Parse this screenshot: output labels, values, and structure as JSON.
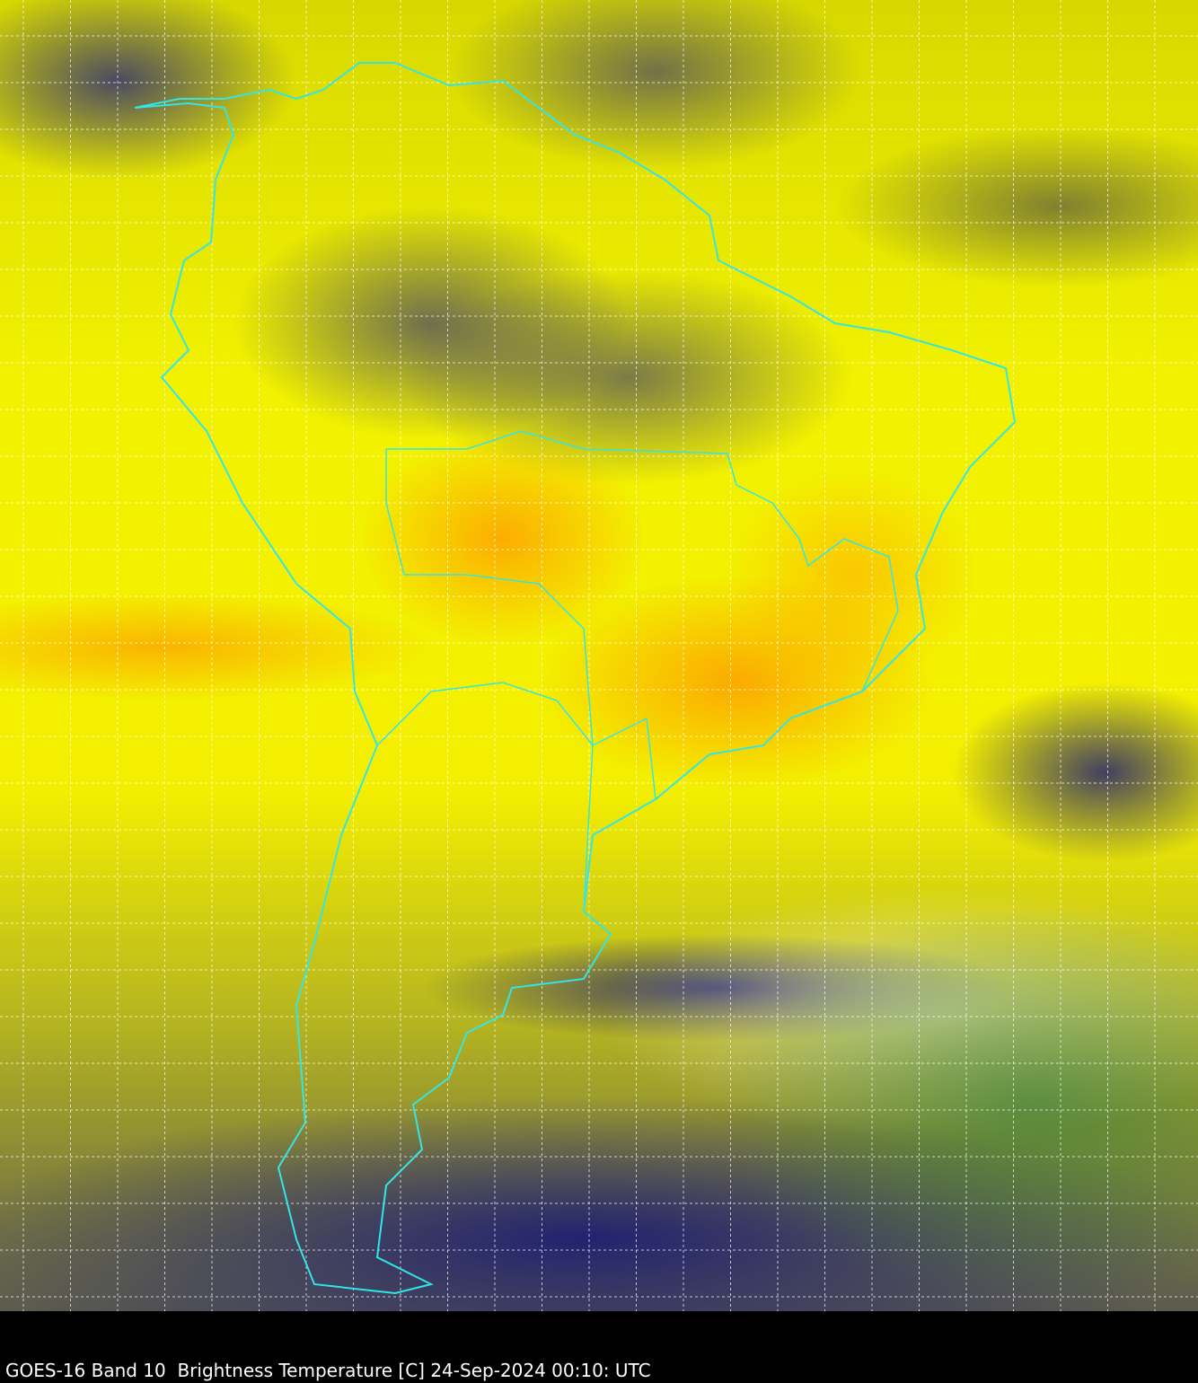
{
  "caption": "GOES-16 Band 10  Brightness Temperature [C] 24-Sep-2024 00:10: UTC",
  "map": {
    "satellite": "GOES-16",
    "band": "10",
    "variable": "Brightness Temperature",
    "units": "C",
    "region": "South America",
    "border_color": "#33e6e6",
    "grid": "dashed white lat/lon graticule",
    "palette_colors": [
      "#191982",
      "#ffffff",
      "#3c823c",
      "#f0f000",
      "#ff9600"
    ]
  }
}
